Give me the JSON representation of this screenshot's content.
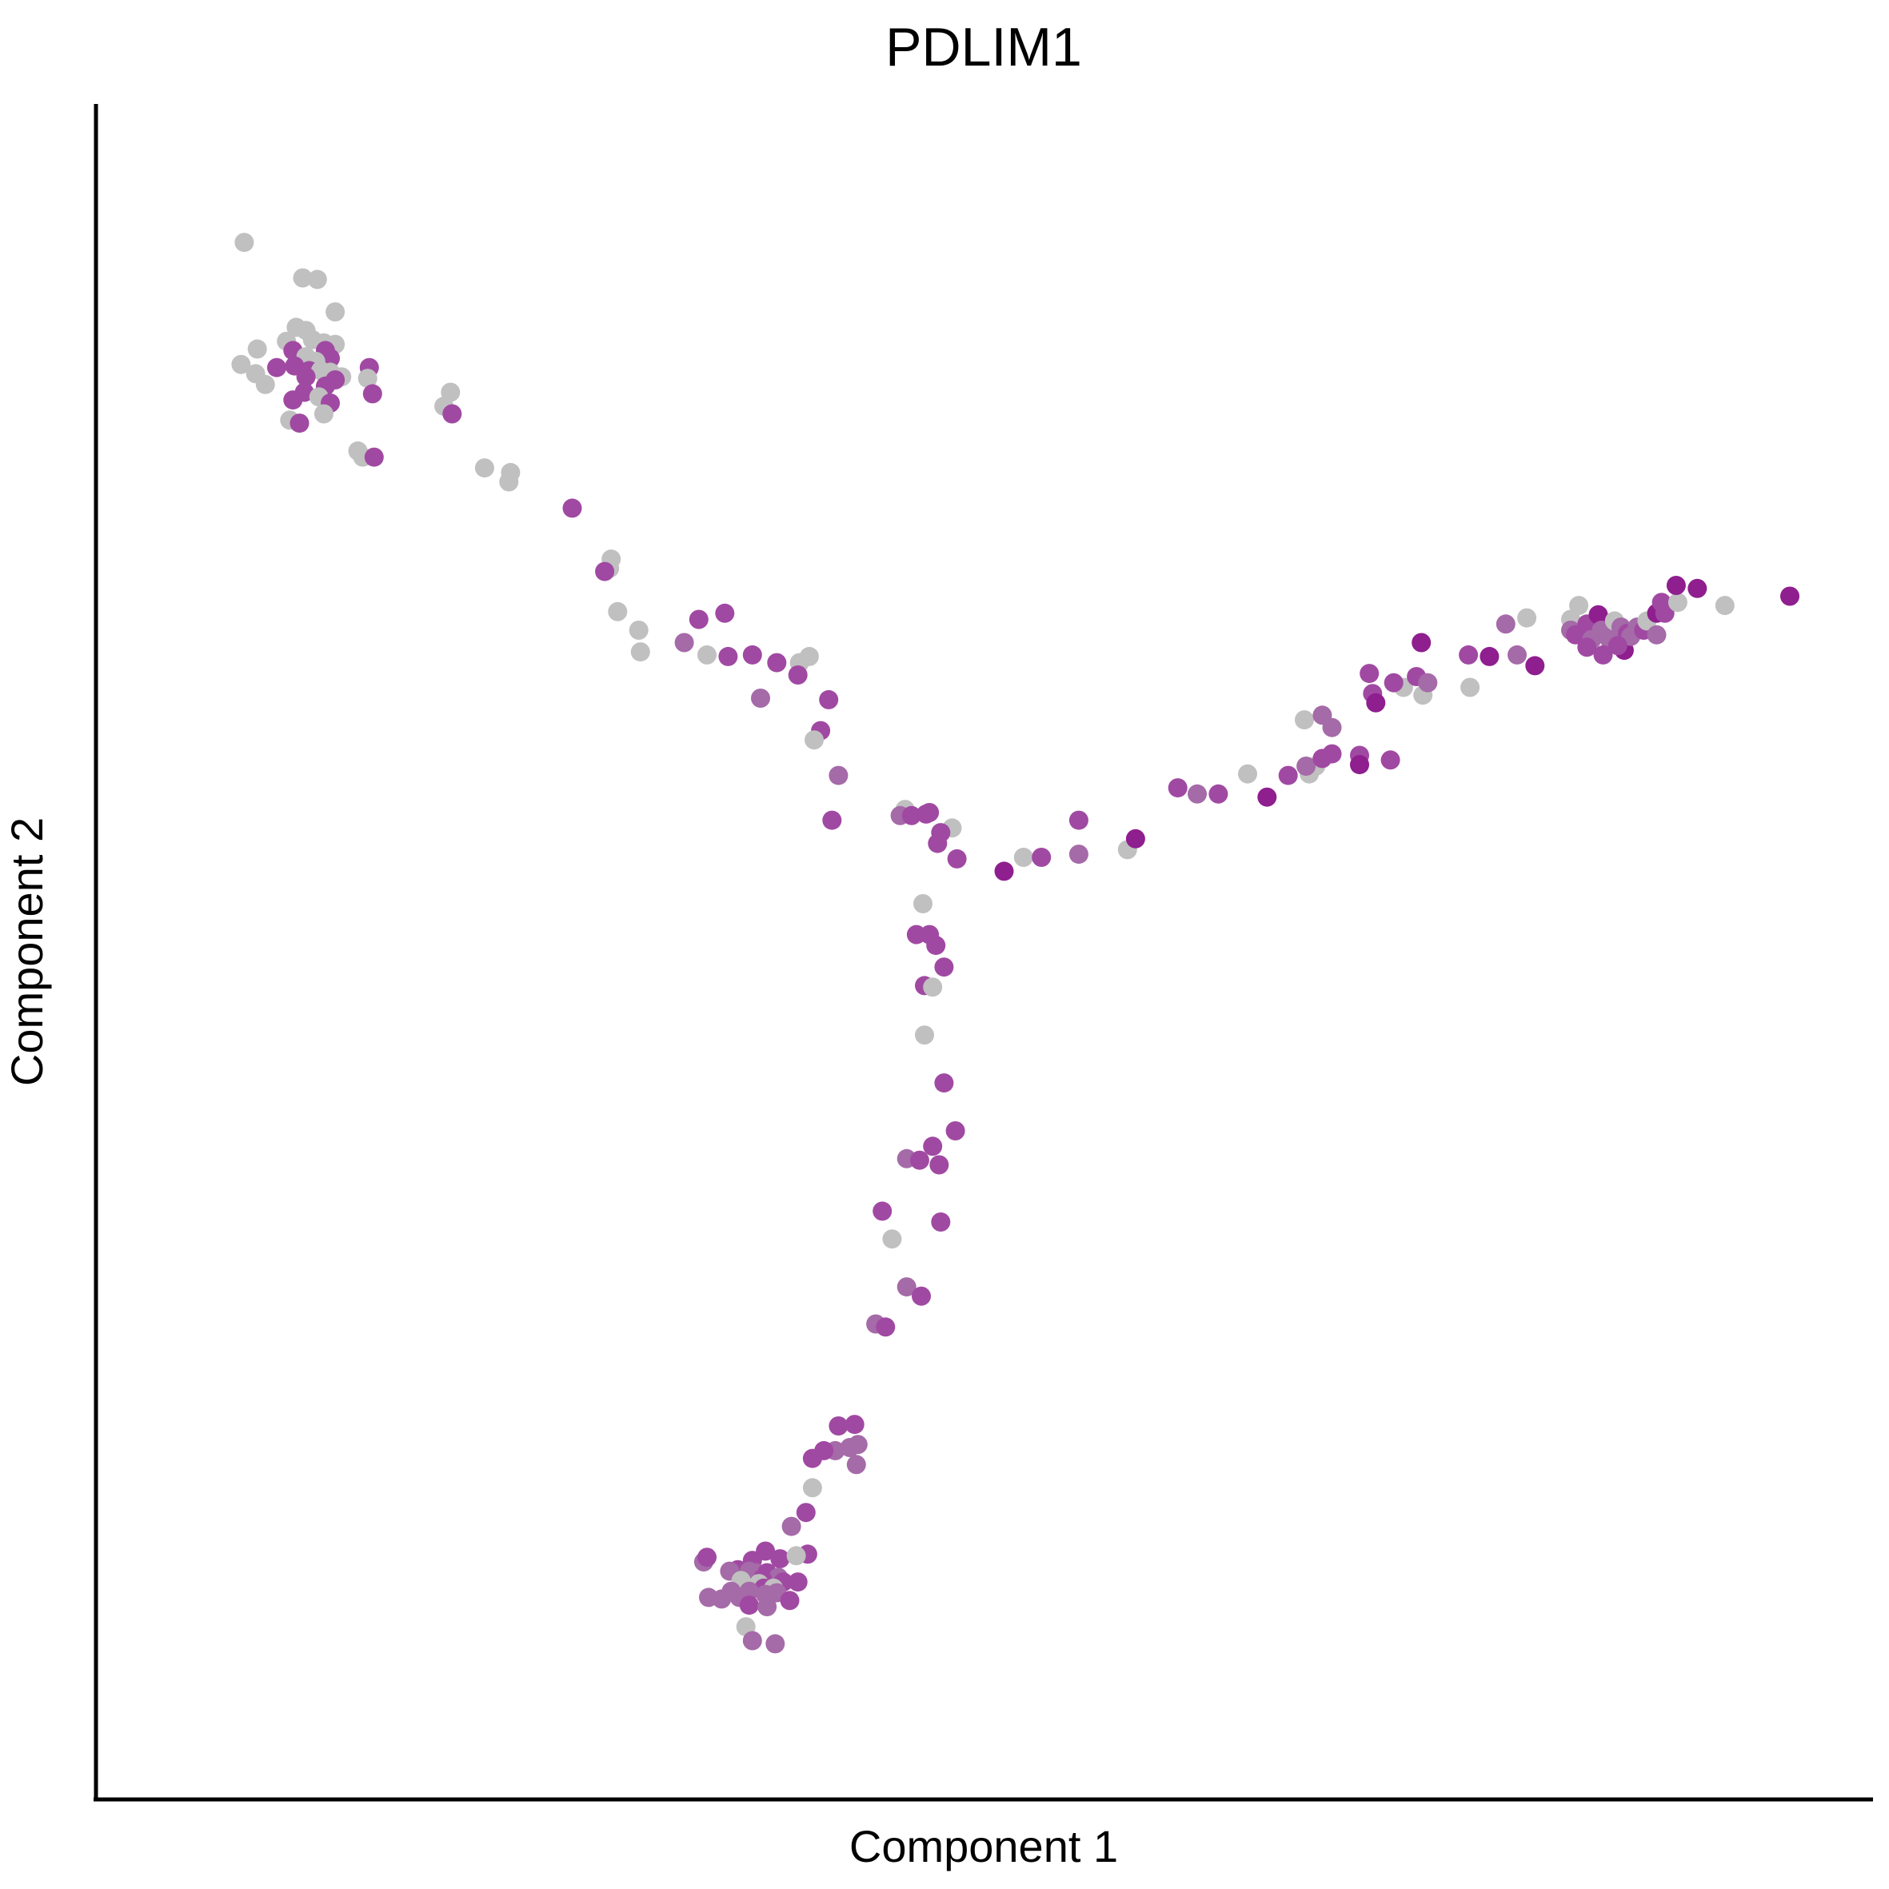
{
  "chart_data": {
    "type": "scatter",
    "title": "PDLIM1",
    "xlabel": "Component 1",
    "ylabel": "Component 2",
    "xlim": [
      0,
      1000
    ],
    "ylim": [
      0,
      1000
    ],
    "grid": false,
    "legend": "none",
    "colors": {
      "gray": "#c0c0c0",
      "light": "#a56aa8",
      "medium": "#a049a2",
      "dark": "#8f1e8f"
    },
    "points": [
      {
        "x": 48,
        "y": 957,
        "c": "gray"
      },
      {
        "x": 84,
        "y": 934,
        "c": "gray"
      },
      {
        "x": 93,
        "y": 933,
        "c": "gray"
      },
      {
        "x": 104,
        "y": 912,
        "c": "gray"
      },
      {
        "x": 80,
        "y": 902,
        "c": "gray"
      },
      {
        "x": 86,
        "y": 900,
        "c": "gray"
      },
      {
        "x": 90,
        "y": 894,
        "c": "gray"
      },
      {
        "x": 97,
        "y": 892,
        "c": "gray"
      },
      {
        "x": 74,
        "y": 893,
        "c": "gray"
      },
      {
        "x": 104,
        "y": 891,
        "c": "gray"
      },
      {
        "x": 56,
        "y": 888,
        "c": "gray"
      },
      {
        "x": 78,
        "y": 887,
        "c": "medium"
      },
      {
        "x": 98,
        "y": 887,
        "c": "medium"
      },
      {
        "x": 101,
        "y": 882,
        "c": "medium"
      },
      {
        "x": 86,
        "y": 883,
        "c": "gray"
      },
      {
        "x": 92,
        "y": 880,
        "c": "gray"
      },
      {
        "x": 46,
        "y": 878,
        "c": "gray"
      },
      {
        "x": 79,
        "y": 877,
        "c": "medium"
      },
      {
        "x": 68,
        "y": 876,
        "c": "medium"
      },
      {
        "x": 88,
        "y": 874,
        "c": "medium"
      },
      {
        "x": 95,
        "y": 874,
        "c": "gray"
      },
      {
        "x": 101,
        "y": 873,
        "c": "gray"
      },
      {
        "x": 108,
        "y": 870,
        "c": "gray"
      },
      {
        "x": 125,
        "y": 876,
        "c": "medium"
      },
      {
        "x": 55,
        "y": 872,
        "c": "gray"
      },
      {
        "x": 86,
        "y": 870,
        "c": "medium"
      },
      {
        "x": 104,
        "y": 868,
        "c": "medium"
      },
      {
        "x": 124,
        "y": 869,
        "c": "gray"
      },
      {
        "x": 61,
        "y": 865,
        "c": "gray"
      },
      {
        "x": 98,
        "y": 864,
        "c": "medium"
      },
      {
        "x": 85,
        "y": 860,
        "c": "medium"
      },
      {
        "x": 94,
        "y": 857,
        "c": "gray"
      },
      {
        "x": 127,
        "y": 859,
        "c": "medium"
      },
      {
        "x": 78,
        "y": 855,
        "c": "medium"
      },
      {
        "x": 101,
        "y": 853,
        "c": "medium"
      },
      {
        "x": 97,
        "y": 846,
        "c": "gray"
      },
      {
        "x": 76,
        "y": 842,
        "c": "gray"
      },
      {
        "x": 82,
        "y": 840,
        "c": "medium"
      },
      {
        "x": 175,
        "y": 860,
        "c": "gray"
      },
      {
        "x": 171,
        "y": 851,
        "c": "gray"
      },
      {
        "x": 176,
        "y": 846,
        "c": "medium"
      },
      {
        "x": 118,
        "y": 822,
        "c": "gray"
      },
      {
        "x": 121,
        "y": 818,
        "c": "gray"
      },
      {
        "x": 128,
        "y": 818,
        "c": "medium"
      },
      {
        "x": 196,
        "y": 811,
        "c": "gray"
      },
      {
        "x": 212,
        "y": 808,
        "c": "gray"
      },
      {
        "x": 211,
        "y": 802,
        "c": "gray"
      },
      {
        "x": 250,
        "y": 785,
        "c": "medium"
      },
      {
        "x": 274,
        "y": 752,
        "c": "gray"
      },
      {
        "x": 273,
        "y": 746,
        "c": "gray"
      },
      {
        "x": 270,
        "y": 744,
        "c": "medium"
      },
      {
        "x": 278,
        "y": 718,
        "c": "gray"
      },
      {
        "x": 291,
        "y": 706,
        "c": "gray"
      },
      {
        "x": 292,
        "y": 692,
        "c": "gray"
      },
      {
        "x": 319,
        "y": 698,
        "c": "light"
      },
      {
        "x": 328,
        "y": 713,
        "c": "medium"
      },
      {
        "x": 344,
        "y": 717,
        "c": "medium"
      },
      {
        "x": 333,
        "y": 690,
        "c": "gray"
      },
      {
        "x": 346,
        "y": 689,
        "c": "medium"
      },
      {
        "x": 361,
        "y": 690,
        "c": "medium"
      },
      {
        "x": 376,
        "y": 685,
        "c": "medium"
      },
      {
        "x": 390,
        "y": 685,
        "c": "gray"
      },
      {
        "x": 396,
        "y": 689,
        "c": "gray"
      },
      {
        "x": 389,
        "y": 677,
        "c": "medium"
      },
      {
        "x": 366,
        "y": 662,
        "c": "light"
      },
      {
        "x": 408,
        "y": 661,
        "c": "medium"
      },
      {
        "x": 403,
        "y": 641,
        "c": "medium"
      },
      {
        "x": 399,
        "y": 635,
        "c": "gray"
      },
      {
        "x": 414,
        "y": 612,
        "c": "light"
      },
      {
        "x": 410,
        "y": 583,
        "c": "medium"
      },
      {
        "x": 455,
        "y": 590,
        "c": "gray"
      },
      {
        "x": 452,
        "y": 586,
        "c": "light"
      },
      {
        "x": 459,
        "y": 586,
        "c": "medium"
      },
      {
        "x": 468,
        "y": 587,
        "c": "medium"
      },
      {
        "x": 470,
        "y": 588,
        "c": "medium"
      },
      {
        "x": 484,
        "y": 578,
        "c": "gray"
      },
      {
        "x": 477,
        "y": 575,
        "c": "medium"
      },
      {
        "x": 475,
        "y": 568,
        "c": "medium"
      },
      {
        "x": 487,
        "y": 558,
        "c": "medium"
      },
      {
        "x": 516,
        "y": 550,
        "c": "dark"
      },
      {
        "x": 528,
        "y": 559,
        "c": "gray"
      },
      {
        "x": 539,
        "y": 559,
        "c": "medium"
      },
      {
        "x": 562,
        "y": 561,
        "c": "light"
      },
      {
        "x": 562,
        "y": 583,
        "c": "medium"
      },
      {
        "x": 592,
        "y": 564,
        "c": "gray"
      },
      {
        "x": 597,
        "y": 571,
        "c": "dark"
      },
      {
        "x": 623,
        "y": 604,
        "c": "medium"
      },
      {
        "x": 635,
        "y": 600,
        "c": "light"
      },
      {
        "x": 648,
        "y": 600,
        "c": "medium"
      },
      {
        "x": 678,
        "y": 598,
        "c": "dark"
      },
      {
        "x": 666,
        "y": 613,
        "c": "gray"
      },
      {
        "x": 691,
        "y": 612,
        "c": "medium"
      },
      {
        "x": 704,
        "y": 613,
        "c": "gray"
      },
      {
        "x": 708,
        "y": 618,
        "c": "gray"
      },
      {
        "x": 702,
        "y": 618,
        "c": "light"
      },
      {
        "x": 712,
        "y": 623,
        "c": "medium"
      },
      {
        "x": 718,
        "y": 626,
        "c": "medium"
      },
      {
        "x": 701,
        "y": 648,
        "c": "gray"
      },
      {
        "x": 712,
        "y": 651,
        "c": "light"
      },
      {
        "x": 718,
        "y": 643,
        "c": "light"
      },
      {
        "x": 735,
        "y": 625,
        "c": "medium"
      },
      {
        "x": 735,
        "y": 619,
        "c": "dark"
      },
      {
        "x": 754,
        "y": 622,
        "c": "medium"
      },
      {
        "x": 743,
        "y": 665,
        "c": "medium"
      },
      {
        "x": 745,
        "y": 659,
        "c": "dark"
      },
      {
        "x": 762,
        "y": 669,
        "c": "gray"
      },
      {
        "x": 741,
        "y": 678,
        "c": "medium"
      },
      {
        "x": 756,
        "y": 672,
        "c": "medium"
      },
      {
        "x": 770,
        "y": 676,
        "c": "medium"
      },
      {
        "x": 774,
        "y": 664,
        "c": "gray"
      },
      {
        "x": 777,
        "y": 672,
        "c": "light"
      },
      {
        "x": 773,
        "y": 698,
        "c": "dark"
      },
      {
        "x": 802,
        "y": 690,
        "c": "medium"
      },
      {
        "x": 815,
        "y": 689,
        "c": "dark"
      },
      {
        "x": 803,
        "y": 669,
        "c": "gray"
      },
      {
        "x": 825,
        "y": 710,
        "c": "light"
      },
      {
        "x": 838,
        "y": 714,
        "c": "gray"
      },
      {
        "x": 832,
        "y": 690,
        "c": "light"
      },
      {
        "x": 843,
        "y": 683,
        "c": "dark"
      },
      {
        "x": 865,
        "y": 713,
        "c": "gray"
      },
      {
        "x": 870,
        "y": 722,
        "c": "gray"
      },
      {
        "x": 865,
        "y": 706,
        "c": "light"
      },
      {
        "x": 868,
        "y": 703,
        "c": "medium"
      },
      {
        "x": 875,
        "y": 710,
        "c": "medium"
      },
      {
        "x": 882,
        "y": 716,
        "c": "dark"
      },
      {
        "x": 878,
        "y": 700,
        "c": "light"
      },
      {
        "x": 884,
        "y": 706,
        "c": "light"
      },
      {
        "x": 889,
        "y": 700,
        "c": "light"
      },
      {
        "x": 875,
        "y": 695,
        "c": "medium"
      },
      {
        "x": 892,
        "y": 712,
        "c": "gray"
      },
      {
        "x": 896,
        "y": 708,
        "c": "light"
      },
      {
        "x": 900,
        "y": 704,
        "c": "medium"
      },
      {
        "x": 885,
        "y": 690,
        "c": "medium"
      },
      {
        "x": 898,
        "y": 693,
        "c": "dark"
      },
      {
        "x": 902,
        "y": 702,
        "c": "light"
      },
      {
        "x": 906,
        "y": 708,
        "c": "light"
      },
      {
        "x": 910,
        "y": 706,
        "c": "medium"
      },
      {
        "x": 912,
        "y": 712,
        "c": "gray"
      },
      {
        "x": 918,
        "y": 717,
        "c": "dark"
      },
      {
        "x": 923,
        "y": 717,
        "c": "medium"
      },
      {
        "x": 918,
        "y": 703,
        "c": "light"
      },
      {
        "x": 894,
        "y": 696,
        "c": "medium"
      },
      {
        "x": 921,
        "y": 724,
        "c": "medium"
      },
      {
        "x": 931,
        "y": 724,
        "c": "gray"
      },
      {
        "x": 930,
        "y": 735,
        "c": "dark"
      },
      {
        "x": 943,
        "y": 733,
        "c": "dark"
      },
      {
        "x": 960,
        "y": 722,
        "c": "gray"
      },
      {
        "x": 1000,
        "y": 728,
        "c": "dark"
      },
      {
        "x": 466,
        "y": 529,
        "c": "gray"
      },
      {
        "x": 470,
        "y": 509,
        "c": "medium"
      },
      {
        "x": 462,
        "y": 509,
        "c": "medium"
      },
      {
        "x": 474,
        "y": 502,
        "c": "medium"
      },
      {
        "x": 479,
        "y": 488,
        "c": "medium"
      },
      {
        "x": 467,
        "y": 476,
        "c": "medium"
      },
      {
        "x": 472,
        "y": 475,
        "c": "gray"
      },
      {
        "x": 467,
        "y": 444,
        "c": "gray"
      },
      {
        "x": 479,
        "y": 413,
        "c": "medium"
      },
      {
        "x": 486,
        "y": 382,
        "c": "medium"
      },
      {
        "x": 472,
        "y": 372,
        "c": "medium"
      },
      {
        "x": 456,
        "y": 364,
        "c": "light"
      },
      {
        "x": 464,
        "y": 363,
        "c": "medium"
      },
      {
        "x": 476,
        "y": 360,
        "c": "medium"
      },
      {
        "x": 441,
        "y": 330,
        "c": "medium"
      },
      {
        "x": 477,
        "y": 323,
        "c": "medium"
      },
      {
        "x": 447,
        "y": 312,
        "c": "gray"
      },
      {
        "x": 456,
        "y": 281,
        "c": "light"
      },
      {
        "x": 465,
        "y": 275,
        "c": "medium"
      },
      {
        "x": 437,
        "y": 257,
        "c": "light"
      },
      {
        "x": 443,
        "y": 255,
        "c": "medium"
      },
      {
        "x": 414,
        "y": 191,
        "c": "medium"
      },
      {
        "x": 424,
        "y": 192,
        "c": "medium"
      },
      {
        "x": 412,
        "y": 175,
        "c": "light"
      },
      {
        "x": 421,
        "y": 177,
        "c": "light"
      },
      {
        "x": 426,
        "y": 179,
        "c": "light"
      },
      {
        "x": 405,
        "y": 175,
        "c": "medium"
      },
      {
        "x": 398,
        "y": 170,
        "c": "medium"
      },
      {
        "x": 425,
        "y": 166,
        "c": "light"
      },
      {
        "x": 398,
        "y": 151,
        "c": "gray"
      },
      {
        "x": 394,
        "y": 135,
        "c": "medium"
      },
      {
        "x": 385,
        "y": 126,
        "c": "light"
      },
      {
        "x": 369,
        "y": 110,
        "c": "medium"
      },
      {
        "x": 395,
        "y": 108,
        "c": "medium"
      },
      {
        "x": 361,
        "y": 104,
        "c": "medium"
      },
      {
        "x": 378,
        "y": 105,
        "c": "medium"
      },
      {
        "x": 388,
        "y": 107,
        "c": "gray"
      },
      {
        "x": 331,
        "y": 103,
        "c": "light"
      },
      {
        "x": 333,
        "y": 106,
        "c": "medium"
      },
      {
        "x": 352,
        "y": 98,
        "c": "medium"
      },
      {
        "x": 359,
        "y": 97,
        "c": "light"
      },
      {
        "x": 347,
        "y": 97,
        "c": "light"
      },
      {
        "x": 363,
        "y": 96,
        "c": "light"
      },
      {
        "x": 370,
        "y": 96,
        "c": "medium"
      },
      {
        "x": 377,
        "y": 93,
        "c": "light"
      },
      {
        "x": 380,
        "y": 90,
        "c": "medium"
      },
      {
        "x": 367,
        "y": 92,
        "c": "medium"
      },
      {
        "x": 358,
        "y": 91,
        "c": "light"
      },
      {
        "x": 365,
        "y": 89,
        "c": "gray"
      },
      {
        "x": 354,
        "y": 91,
        "c": "gray"
      },
      {
        "x": 368,
        "y": 86,
        "c": "medium"
      },
      {
        "x": 374,
        "y": 86,
        "c": "gray"
      },
      {
        "x": 389,
        "y": 90,
        "c": "medium"
      },
      {
        "x": 376,
        "y": 83,
        "c": "light"
      },
      {
        "x": 348,
        "y": 84,
        "c": "light"
      },
      {
        "x": 359,
        "y": 84,
        "c": "light"
      },
      {
        "x": 369,
        "y": 82,
        "c": "light"
      },
      {
        "x": 334,
        "y": 80,
        "c": "light"
      },
      {
        "x": 342,
        "y": 79,
        "c": "light"
      },
      {
        "x": 353,
        "y": 80,
        "c": "light"
      },
      {
        "x": 384,
        "y": 78,
        "c": "medium"
      },
      {
        "x": 359,
        "y": 75,
        "c": "medium"
      },
      {
        "x": 370,
        "y": 74,
        "c": "light"
      },
      {
        "x": 357,
        "y": 61,
        "c": "gray"
      },
      {
        "x": 361,
        "y": 52,
        "c": "light"
      },
      {
        "x": 375,
        "y": 50,
        "c": "light"
      }
    ]
  }
}
